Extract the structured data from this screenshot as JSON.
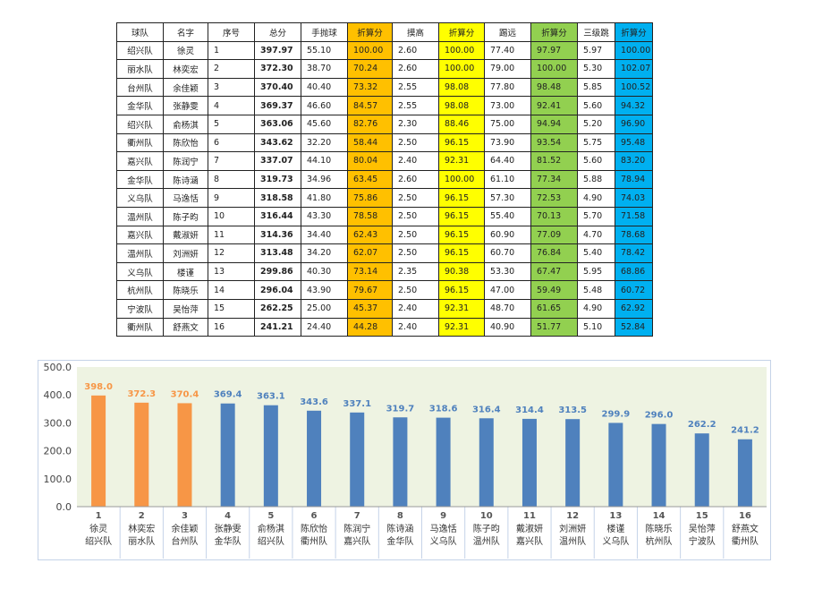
{
  "table": {
    "headers": [
      "球队",
      "名字",
      "序号",
      "总分",
      "手抛球",
      "折算分",
      "摸高",
      "折算分",
      "踢远",
      "折算分",
      "三级跳",
      "折算分"
    ],
    "rows": [
      [
        "绍兴队",
        "徐灵",
        "1",
        "397.97",
        "55.10",
        "100.00",
        "2.60",
        "100.00",
        "77.40",
        "97.97",
        "5.97",
        "100.00"
      ],
      [
        "丽水队",
        "林奕宏",
        "2",
        "372.30",
        "38.70",
        "70.24",
        "2.60",
        "100.00",
        "79.00",
        "100.00",
        "5.30",
        "102.07"
      ],
      [
        "台州队",
        "余佳颖",
        "3",
        "370.40",
        "40.40",
        "73.32",
        "2.55",
        "98.08",
        "77.80",
        "98.48",
        "5.85",
        "100.52"
      ],
      [
        "金华队",
        "张静雯",
        "4",
        "369.37",
        "46.60",
        "84.57",
        "2.55",
        "98.08",
        "73.00",
        "92.41",
        "5.60",
        "94.32"
      ],
      [
        "绍兴队",
        "俞杨淇",
        "5",
        "363.06",
        "45.60",
        "82.76",
        "2.30",
        "88.46",
        "75.00",
        "94.94",
        "5.20",
        "96.90"
      ],
      [
        "衢州队",
        "陈欣怡",
        "6",
        "343.62",
        "32.20",
        "58.44",
        "2.50",
        "96.15",
        "73.90",
        "93.54",
        "5.75",
        "95.48"
      ],
      [
        "嘉兴队",
        "陈润宁",
        "7",
        "337.07",
        "44.10",
        "80.04",
        "2.40",
        "92.31",
        "64.40",
        "81.52",
        "5.60",
        "83.20"
      ],
      [
        "金华队",
        "陈诗涵",
        "8",
        "319.73",
        "34.96",
        "63.45",
        "2.60",
        "100.00",
        "61.10",
        "77.34",
        "5.88",
        "78.94"
      ],
      [
        "义乌队",
        "马逸恬",
        "9",
        "318.58",
        "41.80",
        "75.86",
        "2.50",
        "96.15",
        "57.30",
        "72.53",
        "4.90",
        "74.03"
      ],
      [
        "温州队",
        "陈子昀",
        "10",
        "316.44",
        "43.30",
        "78.58",
        "2.50",
        "96.15",
        "55.40",
        "70.13",
        "5.70",
        "71.58"
      ],
      [
        "嘉兴队",
        "戴淑妍",
        "11",
        "314.36",
        "34.40",
        "62.43",
        "2.50",
        "96.15",
        "60.90",
        "77.09",
        "4.70",
        "78.68"
      ],
      [
        "温州队",
        "刘洲妍",
        "12",
        "313.48",
        "34.20",
        "62.07",
        "2.50",
        "96.15",
        "60.70",
        "76.84",
        "5.40",
        "78.42"
      ],
      [
        "义乌队",
        "楼谨",
        "13",
        "299.86",
        "40.30",
        "73.14",
        "2.35",
        "90.38",
        "53.30",
        "67.47",
        "5.95",
        "68.86"
      ],
      [
        "杭州队",
        "陈晓乐",
        "14",
        "296.04",
        "43.90",
        "79.67",
        "2.50",
        "96.15",
        "47.00",
        "59.49",
        "5.48",
        "60.72"
      ],
      [
        "宁波队",
        "吴怡萍",
        "15",
        "262.25",
        "25.00",
        "45.37",
        "2.40",
        "92.31",
        "48.70",
        "61.65",
        "4.90",
        "62.92"
      ],
      [
        "衢州队",
        "舒燕文",
        "16",
        "241.21",
        "24.40",
        "44.28",
        "2.40",
        "92.31",
        "40.90",
        "51.77",
        "5.10",
        "52.84"
      ]
    ]
  },
  "colors": {
    "orange_col": "#ffc000",
    "yellow_col": "#ffff00",
    "green_col": "#92d050",
    "blue_col": "#00b0f0",
    "bar_top3": "#f79646",
    "bar_rest": "#4f81bd",
    "plot_bg": "#eef3e2",
    "frame": "#c5d3e8"
  },
  "chart_data": {
    "type": "bar",
    "categories": [
      {
        "rank": "1",
        "name": "徐灵",
        "team": "绍兴队"
      },
      {
        "rank": "2",
        "name": "林奕宏",
        "team": "丽水队"
      },
      {
        "rank": "3",
        "name": "余佳颖",
        "team": "台州队"
      },
      {
        "rank": "4",
        "name": "张静雯",
        "team": "金华队"
      },
      {
        "rank": "5",
        "name": "俞杨淇",
        "team": "绍兴队"
      },
      {
        "rank": "6",
        "name": "陈欣怡",
        "team": "衢州队"
      },
      {
        "rank": "7",
        "name": "陈润宁",
        "team": "嘉兴队"
      },
      {
        "rank": "8",
        "name": "陈诗涵",
        "team": "金华队"
      },
      {
        "rank": "9",
        "name": "马逸恬",
        "team": "义乌队"
      },
      {
        "rank": "10",
        "name": "陈子昀",
        "team": "温州队"
      },
      {
        "rank": "11",
        "name": "戴淑妍",
        "team": "嘉兴队"
      },
      {
        "rank": "12",
        "name": "刘洲妍",
        "team": "温州队"
      },
      {
        "rank": "13",
        "name": "楼谨",
        "team": "义乌队"
      },
      {
        "rank": "14",
        "name": "陈晓乐",
        "team": "杭州队"
      },
      {
        "rank": "15",
        "name": "吴怡萍",
        "team": "宁波队"
      },
      {
        "rank": "16",
        "name": "舒燕文",
        "team": "衢州队"
      }
    ],
    "values": [
      398.0,
      372.3,
      370.4,
      369.4,
      363.1,
      343.6,
      337.1,
      319.7,
      318.6,
      316.4,
      314.4,
      313.5,
      299.9,
      296.0,
      262.2,
      241.2
    ],
    "value_labels": [
      "398.0",
      "372.3",
      "370.4",
      "369.4",
      "363.1",
      "343.6",
      "337.1",
      "319.7",
      "318.6",
      "316.4",
      "314.4",
      "313.5",
      "299.9",
      "296.0",
      "262.2",
      "241.2"
    ],
    "highlight_top": 3,
    "ylim": [
      0,
      500
    ],
    "yticks": [
      "0.0",
      "100.0",
      "200.0",
      "300.0",
      "400.0",
      "500.0"
    ],
    "title": "",
    "xlabel": "",
    "ylabel": "",
    "grid": false,
    "legend": "none"
  }
}
